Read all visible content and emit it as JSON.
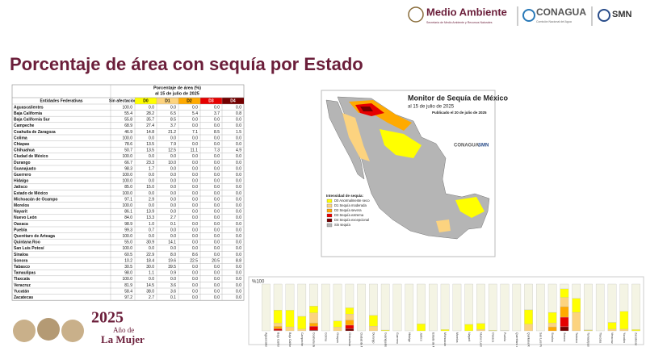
{
  "header": {
    "brand": "Medio Ambiente",
    "brand_sub": "Secretaría de Medio Ambiente y Recursos Naturales",
    "conagua": "CONAGUA",
    "conagua_sub": "Comisión Nacional del Agua",
    "smn": "SMN"
  },
  "title": "Porcentaje de área con sequía por Estado",
  "table": {
    "caption": [
      "Porcentaje de área (%)",
      "al 15 de julio de 2025"
    ],
    "columns": [
      "Entidades Federativas",
      "Sin afectación",
      "D0",
      "D1",
      "D2",
      "D3",
      "D4"
    ],
    "series_colors": [
      "#f4f4e4",
      "#ffff00",
      "#fcd37f",
      "#ffaa00",
      "#e60000",
      "#730000"
    ],
    "rows": [
      [
        "Aguascalientes",
        "100.0",
        "0.0",
        "0.0",
        "0.0",
        "0.0",
        "0.0"
      ],
      [
        "Baja California",
        "55.4",
        "28.2",
        "6.5",
        "5.4",
        "3.7",
        "0.8"
      ],
      [
        "Baja California Sur",
        "55.8",
        "35.7",
        "8.5",
        "0.0",
        "0.0",
        "0.0"
      ],
      [
        "Campeche",
        "68.9",
        "27.4",
        "3.7",
        "0.0",
        "0.0",
        "0.0"
      ],
      [
        "Coahuila de Zaragoza",
        "46.9",
        "14.8",
        "21.2",
        "7.1",
        "8.5",
        "1.5"
      ],
      [
        "Colima",
        "100.0",
        "0.0",
        "0.0",
        "0.0",
        "0.0",
        "0.0"
      ],
      [
        "Chiapas",
        "78.6",
        "13.5",
        "7.9",
        "0.0",
        "0.0",
        "0.0"
      ],
      [
        "Chihuahua",
        "50.7",
        "13.5",
        "12.5",
        "11.1",
        "7.3",
        "4.9"
      ],
      [
        "Ciudad de México",
        "100.0",
        "0.0",
        "0.0",
        "0.0",
        "0.0",
        "0.0"
      ],
      [
        "Durango",
        "66.7",
        "23.3",
        "10.0",
        "0.0",
        "0.0",
        "0.0"
      ],
      [
        "Guanajuato",
        "98.3",
        "1.7",
        "0.0",
        "0.0",
        "0.0",
        "0.0"
      ],
      [
        "Guerrero",
        "100.0",
        "0.0",
        "0.0",
        "0.0",
        "0.0",
        "0.0"
      ],
      [
        "Hidalgo",
        "100.0",
        "0.0",
        "0.0",
        "0.0",
        "0.0",
        "0.0"
      ],
      [
        "Jalisco",
        "85.0",
        "15.0",
        "0.0",
        "0.0",
        "0.0",
        "0.0"
      ],
      [
        "Estado de México",
        "100.0",
        "0.0",
        "0.0",
        "0.0",
        "0.0",
        "0.0"
      ],
      [
        "Michoacán de Ocampo",
        "97.1",
        "2.9",
        "0.0",
        "0.0",
        "0.0",
        "0.0"
      ],
      [
        "Morelos",
        "100.0",
        "0.0",
        "0.0",
        "0.0",
        "0.0",
        "0.0"
      ],
      [
        "Nayarit",
        "86.1",
        "13.9",
        "0.0",
        "0.0",
        "0.0",
        "0.0"
      ],
      [
        "Nuevo León",
        "84.0",
        "13.3",
        "2.7",
        "0.0",
        "0.0",
        "0.0"
      ],
      [
        "Oaxaca",
        "98.9",
        "1.0",
        "0.1",
        "0.0",
        "0.0",
        "0.0"
      ],
      [
        "Puebla",
        "99.3",
        "0.7",
        "0.0",
        "0.0",
        "0.0",
        "0.0"
      ],
      [
        "Querétaro de Arteaga",
        "100.0",
        "0.0",
        "0.0",
        "0.0",
        "0.0",
        "0.0"
      ],
      [
        "Quintana Roo",
        "55.0",
        "30.9",
        "14.1",
        "0.0",
        "0.0",
        "0.0"
      ],
      [
        "San Luis Potosí",
        "100.0",
        "0.0",
        "0.0",
        "0.0",
        "0.0",
        "0.0"
      ],
      [
        "Sinaloa",
        "60.5",
        "22.9",
        "8.0",
        "8.6",
        "0.0",
        "0.0"
      ],
      [
        "Sonora",
        "10.2",
        "18.4",
        "19.6",
        "22.5",
        "20.5",
        "8.8"
      ],
      [
        "Tabasco",
        "30.5",
        "30.0",
        "39.5",
        "0.0",
        "0.0",
        "0.0"
      ],
      [
        "Tamaulipas",
        "98.0",
        "1.1",
        "0.9",
        "0.0",
        "0.0",
        "0.0"
      ],
      [
        "Tlaxcala",
        "100.0",
        "0.0",
        "0.0",
        "0.0",
        "0.0",
        "0.0"
      ],
      [
        "Veracruz",
        "81.9",
        "14.5",
        "3.6",
        "0.0",
        "0.0",
        "0.0"
      ],
      [
        "Yucatán",
        "58.4",
        "38.0",
        "3.6",
        "0.0",
        "0.0",
        "0.0"
      ],
      [
        "Zacatecas",
        "97.2",
        "2.7",
        "0.1",
        "0.0",
        "0.0",
        "0.0"
      ]
    ]
  },
  "map": {
    "title": "Monitor de Sequía de México",
    "date": "al 15 de julio de 2025",
    "published": "Publicado el 20 de julio de 2025",
    "legend_title": "Intensidad de sequía:",
    "legend": [
      {
        "label": "D0 Anormalmente seco",
        "color": "#ffff00"
      },
      {
        "label": "D1 Sequía moderada",
        "color": "#fcd37f"
      },
      {
        "label": "D2 Sequía severa",
        "color": "#ffaa00"
      },
      {
        "label": "D3 Sequía extrema",
        "color": "#e60000"
      },
      {
        "label": "D4 Sequía excepcional",
        "color": "#730000"
      },
      {
        "label": "Sin sequía",
        "color": "#b5b5b5"
      }
    ],
    "logos": [
      "CONAGUA",
      "SMN"
    ]
  },
  "bar_chart": {
    "y_label": "%100"
  },
  "footer": {
    "year": "2025",
    "line1": "Año de",
    "line2": "La Mujer"
  }
}
